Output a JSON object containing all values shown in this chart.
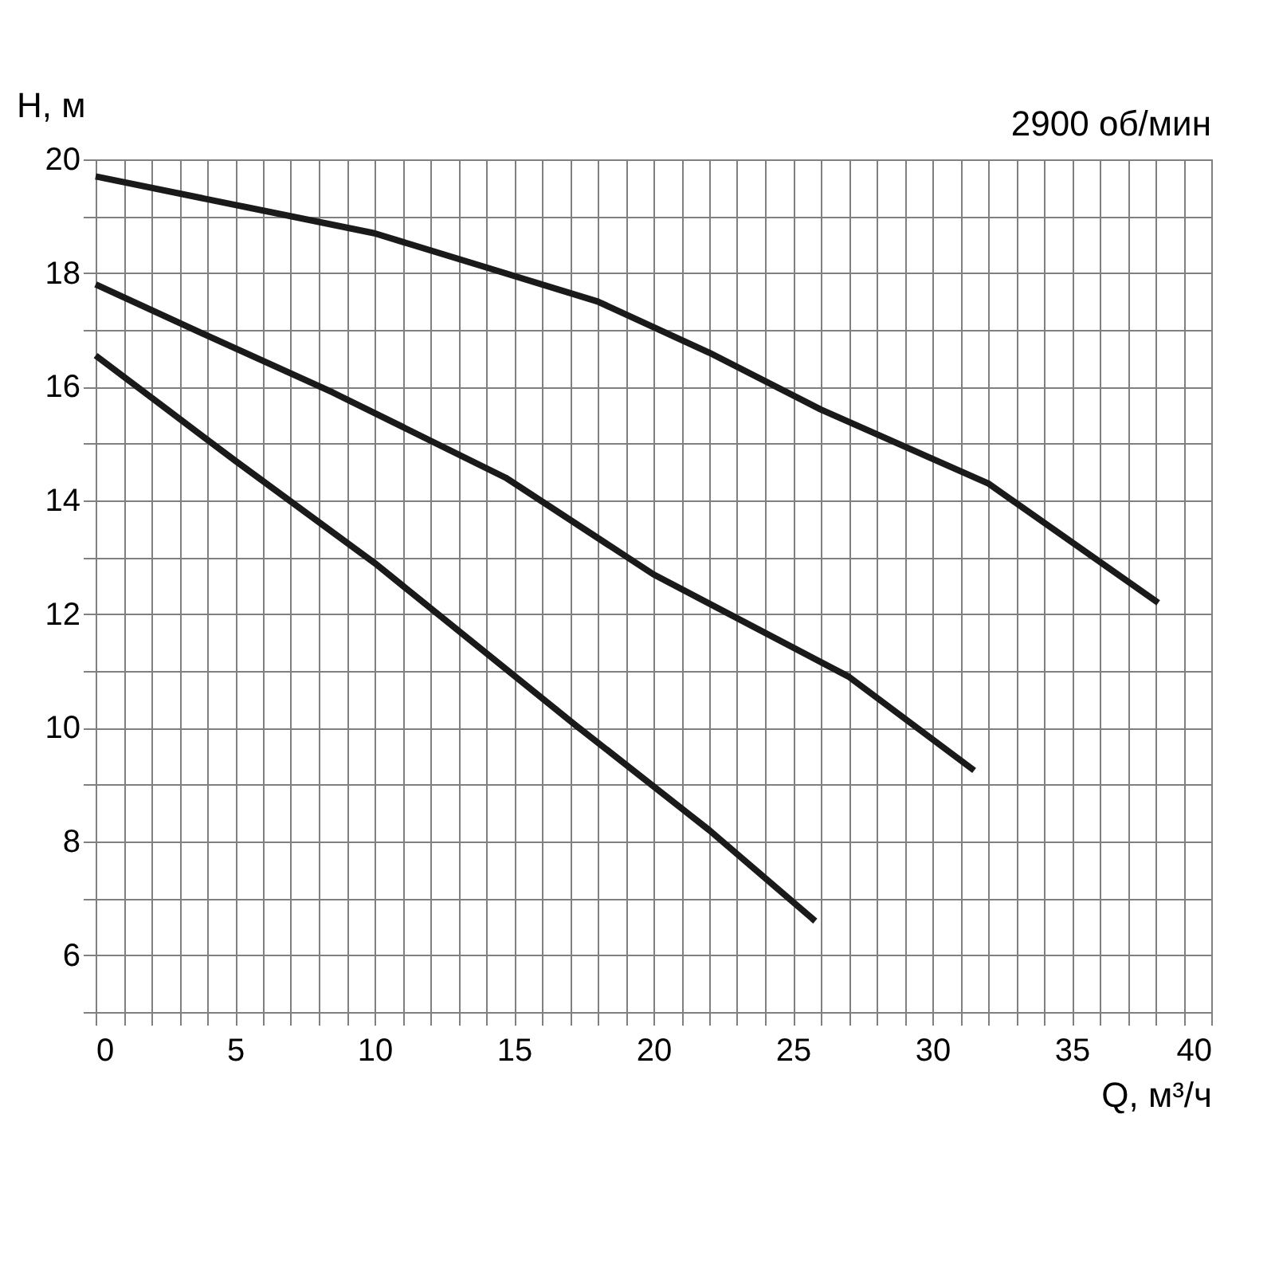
{
  "chart_data": {
    "type": "line",
    "xlabel": "Q, м³/ч",
    "ylabel": "H, м",
    "annotations": [
      "2900 об/мин"
    ],
    "xlim": [
      0,
      40
    ],
    "ylim": [
      5,
      20
    ],
    "xticks": [
      0,
      {
        "value": 1,
        "label": null
      },
      {
        "value": 2,
        "label": null
      },
      {
        "value": 3,
        "label": null
      },
      {
        "value": 4,
        "label": null
      },
      5,
      {
        "value": 6,
        "label": null
      },
      {
        "value": 7,
        "label": null
      },
      {
        "value": 8,
        "label": null
      },
      {
        "value": 9,
        "label": null
      },
      10,
      {
        "value": 11,
        "label": null
      },
      {
        "value": 12,
        "label": null
      },
      {
        "value": 13,
        "label": null
      },
      {
        "value": 14,
        "label": null
      },
      15,
      {
        "value": 16,
        "label": null
      },
      {
        "value": 17,
        "label": null
      },
      {
        "value": 18,
        "label": null
      },
      {
        "value": 19,
        "label": null
      },
      20,
      {
        "value": 21,
        "label": null
      },
      {
        "value": 22,
        "label": null
      },
      {
        "value": 23,
        "label": null
      },
      {
        "value": 24,
        "label": null
      },
      25,
      {
        "value": 26,
        "label": null
      },
      {
        "value": 27,
        "label": null
      },
      {
        "value": 28,
        "label": null
      },
      {
        "value": 29,
        "label": null
      },
      30,
      {
        "value": 31,
        "label": null
      },
      {
        "value": 32,
        "label": null
      },
      {
        "value": 33,
        "label": null
      },
      {
        "value": 34,
        "label": null
      },
      35,
      {
        "value": 36,
        "label": null
      },
      {
        "value": 37,
        "label": null
      },
      {
        "value": 38,
        "label": null
      },
      {
        "value": 39,
        "label": null
      },
      40
    ],
    "yticks": [
      {
        "value": 5,
        "label": null
      },
      6,
      {
        "value": 7,
        "label": null
      },
      8,
      {
        "value": 9,
        "label": null
      },
      10,
      {
        "value": 11,
        "label": null
      },
      12,
      {
        "value": 13,
        "label": null
      },
      14,
      {
        "value": 15,
        "label": null
      },
      16,
      {
        "value": 17,
        "label": null
      },
      18,
      {
        "value": 19,
        "label": null
      },
      20
    ],
    "grid": true,
    "legend": false,
    "marker": "none",
    "line_style": "solid",
    "series": [
      {
        "color": "#1a1a1a",
        "x": [
          0,
          5,
          10,
          14,
          18,
          22,
          26,
          32,
          38.1
        ],
        "values": [
          19.7,
          19.2,
          18.7,
          18.1,
          17.5,
          16.6,
          15.6,
          14.3,
          12.2
        ]
      },
      {
        "color": "#1a1a1a",
        "x": [
          0,
          4,
          8.5,
          14.7,
          20,
          27,
          31.5
        ],
        "values": [
          17.8,
          16.9,
          15.9,
          14.4,
          12.7,
          10.9,
          9.25
        ]
      },
      {
        "color": "#1a1a1a",
        "x": [
          0,
          5,
          10,
          17.2,
          22,
          25.8
        ],
        "values": [
          16.55,
          14.7,
          12.9,
          10.05,
          8.2,
          6.6
        ]
      }
    ]
  }
}
